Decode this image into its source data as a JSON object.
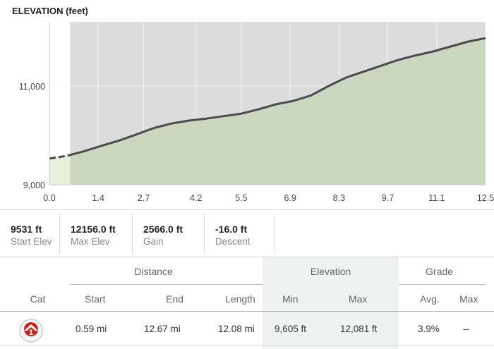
{
  "chart_data": {
    "type": "area",
    "title": "ELEVATION (feet)",
    "xlabel": "",
    "ylabel": "",
    "xlim": [
      0,
      12.5
    ],
    "ylim": [
      9000,
      12300
    ],
    "x_ticks": [
      0.0,
      1.4,
      2.7,
      4.2,
      5.5,
      6.9,
      8.3,
      9.7,
      11.1,
      12.5
    ],
    "x_tick_labels": [
      "0.0",
      "1.4",
      "2.7",
      "4.2",
      "5.5",
      "6.9",
      "8.3",
      "9.7",
      "11.1",
      "12.5"
    ],
    "y_ticks": [
      9000,
      11000
    ],
    "y_tick_labels": [
      "9,000",
      "11,000"
    ],
    "grid": true,
    "segment_range": [
      0.59,
      12.5
    ],
    "series": [
      {
        "x": [
          0.0,
          0.5,
          1.0,
          1.5,
          2.0,
          2.5,
          3.0,
          3.5,
          4.0,
          4.5,
          5.0,
          5.5,
          6.0,
          6.5,
          7.0,
          7.5,
          8.0,
          8.5,
          9.0,
          9.5,
          10.0,
          10.5,
          11.0,
          11.5,
          12.0,
          12.5
        ],
        "y": [
          9531,
          9585,
          9680,
          9790,
          9895,
          10020,
          10150,
          10240,
          10300,
          10340,
          10390,
          10440,
          10530,
          10630,
          10700,
          10810,
          11000,
          11170,
          11290,
          11410,
          11530,
          11620,
          11700,
          11800,
          11900,
          11970
        ]
      }
    ]
  },
  "stats": [
    {
      "value": "9531 ft",
      "label": "Start Elev"
    },
    {
      "value": "12156.0 ft",
      "label": "Max Elev"
    },
    {
      "value": "2566.0 ft",
      "label": "Gain"
    },
    {
      "value": "-16.0 ft",
      "label": "Descent"
    }
  ],
  "table": {
    "groups": {
      "distance": "Distance",
      "elevation": "Elevation",
      "grade": "Grade"
    },
    "headers": {
      "cat": "Cat",
      "start": "Start",
      "end": "End",
      "length": "Length",
      "min": "Min",
      "max": "Max",
      "avg": "Avg.",
      "gmax": "Max"
    },
    "row": {
      "cat_badge": "1",
      "start": "0.59 mi",
      "end": "12.67 mi",
      "length": "12.08 mi",
      "min": "9,605 ft",
      "max": "12,081 ft",
      "avg": "3.9%",
      "gmax": "--"
    }
  },
  "colors": {
    "plot_bg": "#dcdcdc",
    "area_fill": "#cbd8bf",
    "area_fill_pre": "#e6f0da",
    "line": "#4b4b4b",
    "grid": "#f4f4f4",
    "badge": "#cc2222"
  }
}
